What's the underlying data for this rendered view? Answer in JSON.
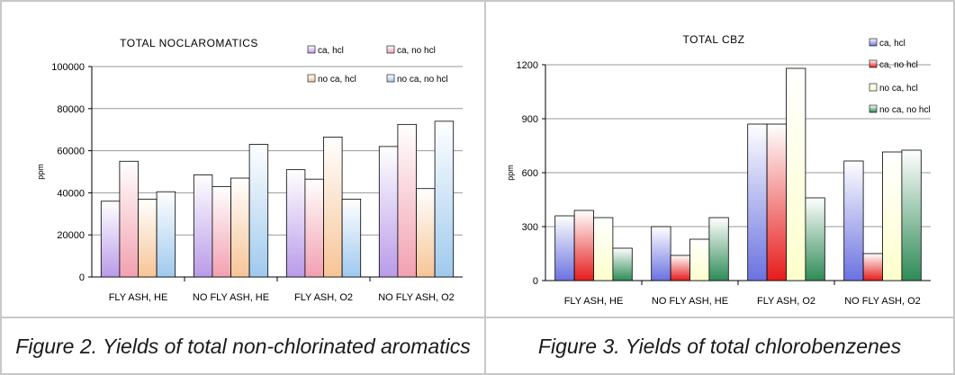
{
  "chart_data": [
    {
      "type": "bar",
      "title": "TOTAL NOCLAROMATICS",
      "ylabel": "ppm",
      "xlabel": "",
      "ylim": [
        0,
        100000
      ],
      "yticks": [
        "0",
        "20000",
        "40000",
        "60000",
        "80000",
        "100000"
      ],
      "categories": [
        "FLY ASH, HE",
        "NO FLY ASH, HE",
        "FLY ASH, O2",
        "NO FLY ASH, O2"
      ],
      "series": [
        {
          "name": "ca, hcl",
          "values": [
            36000,
            48500,
            51000,
            62000
          ]
        },
        {
          "name": "ca, no hcl",
          "values": [
            55000,
            43000,
            46500,
            72500
          ]
        },
        {
          "name": "no ca, hcl",
          "values": [
            37000,
            47000,
            66500,
            42000
          ]
        },
        {
          "name": "no ca, no hcl",
          "values": [
            40500,
            63000,
            37000,
            74000
          ]
        }
      ],
      "grid": true,
      "legend": "top-right"
    },
    {
      "type": "bar",
      "title": "TOTAL CBZ",
      "ylabel": "ppm",
      "xlabel": "",
      "ylim": [
        0,
        1200
      ],
      "yticks": [
        "0",
        "300",
        "600",
        "900",
        "1200"
      ],
      "categories": [
        "FLY ASH, HE",
        "NO FLY ASH, HE",
        "FLY ASH, O2",
        "NO FLY ASH, O2"
      ],
      "series": [
        {
          "name": "ca, hcl",
          "values": [
            360,
            300,
            870,
            665
          ]
        },
        {
          "name": "ca, no hcl",
          "values": [
            390,
            140,
            870,
            150
          ]
        },
        {
          "name": "no ca, hcl",
          "values": [
            350,
            230,
            1180,
            715
          ]
        },
        {
          "name": "no ca, no hcl",
          "values": [
            180,
            350,
            460,
            725
          ]
        }
      ],
      "grid": true,
      "legend": "right"
    }
  ],
  "captions": {
    "fig2": "Figure 2. Yields of total non-chlorinated aromatics",
    "fig3": "Figure 3. Yields of total chlorobenzenes"
  },
  "colors": {
    "left": [
      "#b99be8",
      "#f2a0b0",
      "#f7c596",
      "#9fc9ee"
    ],
    "right": [
      "#6b72e0",
      "#e61c1c",
      "#ffffcc",
      "#2e8b57"
    ]
  }
}
